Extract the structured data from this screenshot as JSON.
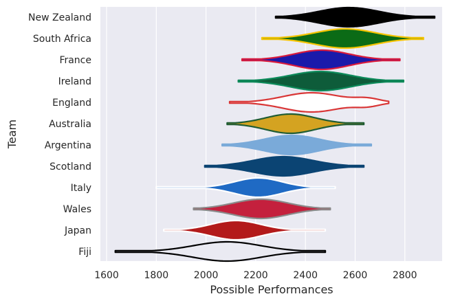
{
  "chart_data": {
    "type": "violin",
    "xlabel": "Possible Performances",
    "ylabel": "Team",
    "xlim": [
      1575,
      2950
    ],
    "xticks": [
      1600,
      1800,
      2000,
      2200,
      2400,
      2600,
      2800
    ],
    "grid": true,
    "background": "#eaeaf2",
    "teams": [
      {
        "name": "New Zealand",
        "fill": "#000000",
        "edge": "#000000",
        "min": 2280,
        "max": 2920,
        "center": 2575,
        "spread": 120
      },
      {
        "name": "South Africa",
        "fill": "#0b6b16",
        "edge": "#f5c400",
        "min": 2225,
        "max": 2875,
        "center": 2560,
        "spread": 120
      },
      {
        "name": "France",
        "fill": "#1a1aaa",
        "edge": "#d91a3c",
        "min": 2145,
        "max": 2780,
        "center": 2465,
        "spread": 110
      },
      {
        "name": "Ireland",
        "fill": "#0e5c3a",
        "edge": "#0d8a5a",
        "min": 2130,
        "max": 2795,
        "center": 2460,
        "spread": 120
      },
      {
        "name": "England",
        "fill": "#ffffff",
        "edge": "#d93636",
        "min": 2095,
        "max": 2735,
        "center": 2425,
        "spread": 115,
        "secondary": {
          "center": 2650,
          "spread": 50,
          "weight": 0.35
        }
      },
      {
        "name": "Australia",
        "fill": "#d4a321",
        "edge": "#1f5c34",
        "min": 2085,
        "max": 2635,
        "center": 2340,
        "spread": 100
      },
      {
        "name": "Argentina",
        "fill": "#7aaad9",
        "edge": "#7aaad9",
        "min": 2065,
        "max": 2665,
        "center": 2345,
        "spread": 110
      },
      {
        "name": "Scotland",
        "fill": "#0b4473",
        "edge": "#0b4473",
        "min": 1995,
        "max": 2635,
        "center": 2310,
        "spread": 120
      },
      {
        "name": "Italy",
        "fill": "#1f6ac4",
        "edge": "#ffffff",
        "min": 1800,
        "max": 2520,
        "center": 2210,
        "spread": 95
      },
      {
        "name": "Wales",
        "fill": "#c4203d",
        "edge": "#8a8a8a",
        "min": 1950,
        "max": 2500,
        "center": 2220,
        "spread": 110
      },
      {
        "name": "Japan",
        "fill": "#b31a1a",
        "edge": "#ffffff",
        "min": 1830,
        "max": 2480,
        "center": 2120,
        "spread": 100
      },
      {
        "name": "Fiji",
        "fill": "#eaeaf2",
        "edge": "#000000",
        "min": 1635,
        "max": 2480,
        "center": 2085,
        "spread": 135
      }
    ]
  }
}
